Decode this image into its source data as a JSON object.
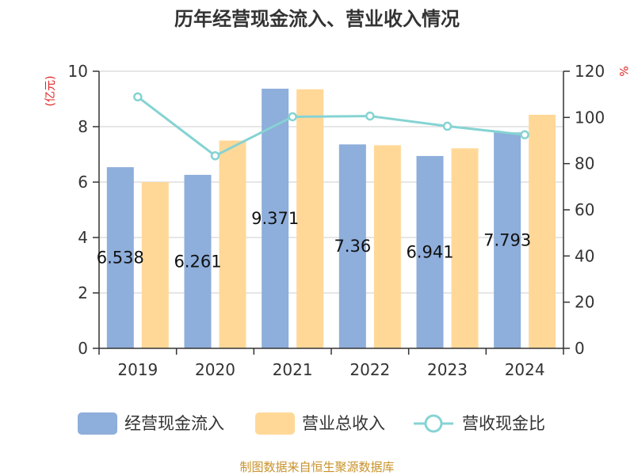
{
  "chart_data": {
    "type": "bar",
    "title": "历年经营现金流入、营业收入情况",
    "categories": [
      "2019",
      "2020",
      "2021",
      "2022",
      "2023",
      "2024"
    ],
    "series": [
      {
        "name": "经营现金流入",
        "kind": "bar",
        "axis": "left",
        "color": "#8eaedb",
        "values": [
          6.538,
          6.261,
          9.371,
          7.36,
          6.941,
          7.793
        ],
        "labels": [
          "6.538",
          "6.261",
          "9.371",
          "7.36",
          "6.941",
          "7.793"
        ]
      },
      {
        "name": "营业总收入",
        "kind": "bar",
        "axis": "left",
        "color": "#ffd898",
        "values": [
          6.0,
          7.5,
          9.35,
          7.33,
          7.22,
          8.43
        ]
      },
      {
        "name": "营收现金比",
        "kind": "line",
        "axis": "right",
        "color": "#86d3d3",
        "values": [
          108.9,
          83.4,
          100.3,
          100.6,
          96.2,
          92.5
        ]
      }
    ],
    "y_left": {
      "label": "(亿元)",
      "min": 0,
      "max": 10,
      "ticks": [
        0,
        2,
        4,
        6,
        8,
        10
      ]
    },
    "y_right": {
      "label": "%",
      "min": 0,
      "max": 120,
      "ticks": [
        0,
        20,
        40,
        60,
        80,
        100,
        120
      ]
    },
    "grid": true,
    "legend_position": "bottom"
  },
  "source": "制图数据来自恒生聚源数据库"
}
